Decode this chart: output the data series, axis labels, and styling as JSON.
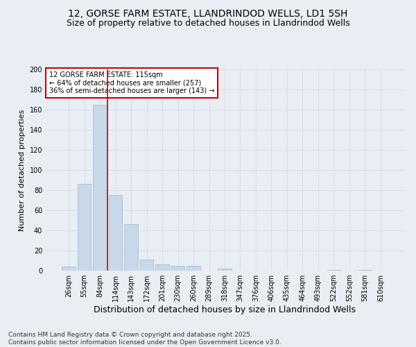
{
  "title": "12, GORSE FARM ESTATE, LLANDRINDOD WELLS, LD1 5SH",
  "subtitle": "Size of property relative to detached houses in Llandrindod Wells",
  "xlabel": "Distribution of detached houses by size in Llandrindod Wells",
  "ylabel": "Number of detached properties",
  "bar_labels": [
    "26sqm",
    "55sqm",
    "84sqm",
    "114sqm",
    "143sqm",
    "172sqm",
    "201sqm",
    "230sqm",
    "260sqm",
    "289sqm",
    "318sqm",
    "347sqm",
    "376sqm",
    "406sqm",
    "435sqm",
    "464sqm",
    "493sqm",
    "522sqm",
    "552sqm",
    "581sqm",
    "610sqm"
  ],
  "bar_values": [
    4,
    86,
    165,
    75,
    46,
    11,
    6,
    5,
    5,
    0,
    2,
    0,
    0,
    0,
    0,
    0,
    0,
    1,
    0,
    1,
    0
  ],
  "bar_color": "#c8d8e8",
  "bar_edgecolor": "#a0b8cc",
  "grid_color": "#d0d8e0",
  "background_color": "#e8eef4",
  "vline_color": "#cc0000",
  "annotation_text": "12 GORSE FARM ESTATE: 115sqm\n← 64% of detached houses are smaller (257)\n36% of semi-detached houses are larger (143) →",
  "annotation_box_color": "#ffffff",
  "annotation_box_edgecolor": "#cc0000",
  "ylim": [
    0,
    200
  ],
  "yticks": [
    0,
    20,
    40,
    60,
    80,
    100,
    120,
    140,
    160,
    180,
    200
  ],
  "footer": "Contains HM Land Registry data © Crown copyright and database right 2025.\nContains public sector information licensed under the Open Government Licence v3.0.",
  "title_fontsize": 10,
  "subtitle_fontsize": 9,
  "xlabel_fontsize": 9,
  "ylabel_fontsize": 8,
  "tick_fontsize": 7,
  "footer_fontsize": 6.5,
  "annotation_fontsize": 7
}
